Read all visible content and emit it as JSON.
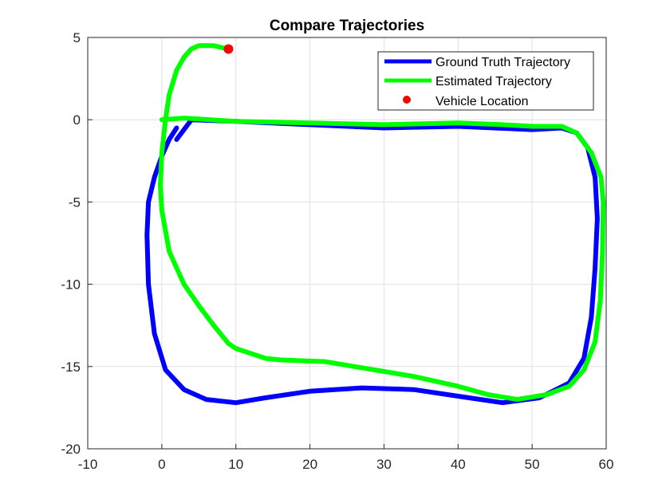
{
  "chart_data": {
    "type": "line",
    "title": "Compare Trajectories",
    "xlabel": "",
    "ylabel": "",
    "xlim": [
      -10,
      60
    ],
    "ylim": [
      -20,
      5
    ],
    "xticks": [
      -10,
      0,
      10,
      20,
      30,
      40,
      50,
      60
    ],
    "yticks": [
      -20,
      -15,
      -10,
      -5,
      0,
      5
    ],
    "xtick_labels": [
      "-10",
      "0",
      "10",
      "20",
      "30",
      "40",
      "50",
      "60"
    ],
    "ytick_labels": [
      "-20",
      "-15",
      "-10",
      "-5",
      "0",
      "5"
    ],
    "grid": true,
    "legend_position": "top-right",
    "series": [
      {
        "name": "Ground Truth Trajectory",
        "color": "#0000ff",
        "x": [
          2,
          4,
          10,
          20,
          30,
          40,
          50,
          54,
          56,
          57.5,
          58.5,
          58.8,
          58.5,
          58,
          57,
          55,
          51,
          46,
          40,
          34,
          27,
          20,
          14,
          10,
          6,
          3,
          0.5,
          -1,
          -1.8,
          -2,
          -1.8,
          -1,
          0,
          1,
          2
        ],
        "y": [
          -1.2,
          0,
          -0.1,
          -0.3,
          -0.5,
          -0.4,
          -0.6,
          -0.5,
          -0.8,
          -1.7,
          -3.5,
          -6,
          -9,
          -12,
          -14.5,
          -16,
          -16.9,
          -17.2,
          -16.8,
          -16.4,
          -16.3,
          -16.5,
          -16.9,
          -17.2,
          -17,
          -16.4,
          -15.2,
          -13,
          -10,
          -7,
          -5,
          -3.5,
          -2.2,
          -1.2,
          -0.5
        ]
      },
      {
        "name": "Estimated Trajectory",
        "color": "#00ff00",
        "x": [
          0,
          3,
          10,
          20,
          30,
          40,
          46,
          50,
          54,
          56,
          58,
          59.3,
          59.6,
          59.5,
          59.2,
          58.5,
          57,
          55,
          52,
          48,
          44,
          40,
          34,
          26,
          22,
          16,
          14,
          12,
          10,
          9,
          7,
          5,
          3,
          1,
          0,
          -0.2,
          0,
          0.5,
          1,
          2,
          3,
          4,
          5,
          6,
          7,
          8,
          9
        ],
        "y": [
          0,
          0.1,
          -0.1,
          -0.2,
          -0.3,
          -0.2,
          -0.3,
          -0.4,
          -0.4,
          -0.8,
          -2,
          -3.5,
          -5,
          -8,
          -11,
          -13.5,
          -15.2,
          -16.2,
          -16.7,
          -17,
          -16.7,
          -16.2,
          -15.6,
          -15,
          -14.7,
          -14.6,
          -14.5,
          -14.2,
          -13.9,
          -13.6,
          -12.5,
          -11.3,
          -10,
          -8,
          -5.5,
          -4,
          -2,
          0,
          1.5,
          3,
          3.8,
          4.3,
          4.5,
          4.5,
          4.5,
          4.4,
          4.3
        ]
      }
    ],
    "markers": [
      {
        "name": "Vehicle Location",
        "color": "#ff0000",
        "x": 9,
        "y": 4.3
      }
    ],
    "legend": [
      {
        "label": "Ground Truth Trajectory",
        "kind": "line",
        "color": "#0000ff"
      },
      {
        "label": "Estimated Trajectory",
        "kind": "line",
        "color": "#00ff00"
      },
      {
        "label": "Vehicle Location",
        "kind": "marker",
        "color": "#ff0000"
      }
    ]
  }
}
